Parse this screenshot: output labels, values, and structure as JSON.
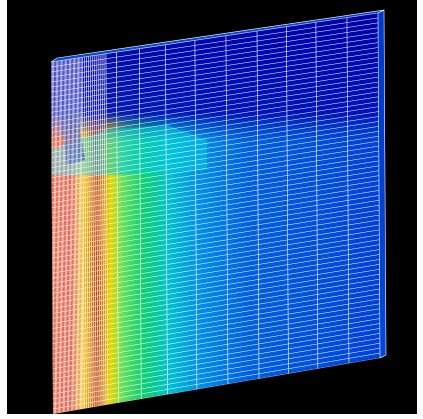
{
  "viewer": {
    "background_color": "#000000",
    "mesh_line_color": "#ffffff",
    "object": "meshed-slab-3d",
    "colormap": [
      "#0000c8",
      "#0050e0",
      "#00a0f0",
      "#00e0e0",
      "#00e060",
      "#80f000",
      "#f0f000",
      "#f0a000",
      "#e03000",
      "#c00000"
    ]
  }
}
